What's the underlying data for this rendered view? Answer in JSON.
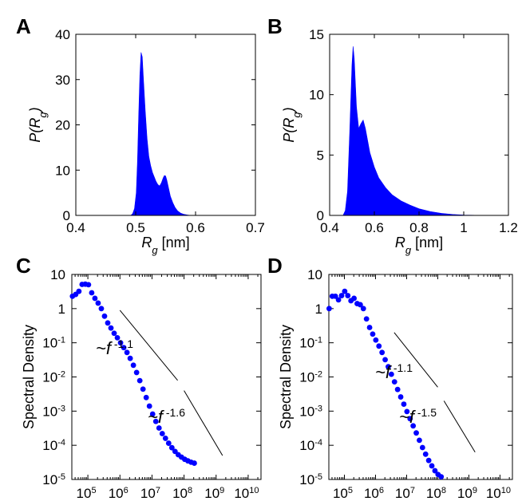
{
  "chart_data": [
    {
      "panel": "A",
      "type": "histogram",
      "xlabel_main": "R",
      "xlabel_sub": "g",
      "xlabel_unit": " [nm]",
      "ylabel_pre": "P(R",
      "ylabel_sub": "g",
      "ylabel_post": ")",
      "xlim": [
        0.4,
        0.7
      ],
      "ylim": [
        0,
        40
      ],
      "xticks": [
        "0.4",
        "0.5",
        "0.6",
        "0.7"
      ],
      "yticks": [
        "0",
        "10",
        "20",
        "30",
        "40"
      ],
      "color": "#0000ff",
      "curve": [
        [
          0.492,
          0
        ],
        [
          0.495,
          0.4
        ],
        [
          0.498,
          1.5
        ],
        [
          0.501,
          5
        ],
        [
          0.503,
          12
        ],
        [
          0.505,
          22
        ],
        [
          0.507,
          31
        ],
        [
          0.509,
          36
        ],
        [
          0.511,
          35
        ],
        [
          0.513,
          30
        ],
        [
          0.516,
          23
        ],
        [
          0.519,
          17
        ],
        [
          0.522,
          13
        ],
        [
          0.525,
          11
        ],
        [
          0.528,
          9.5
        ],
        [
          0.531,
          8.5
        ],
        [
          0.534,
          7.5
        ],
        [
          0.537,
          6.8
        ],
        [
          0.54,
          6.5
        ],
        [
          0.543,
          7.2
        ],
        [
          0.546,
          8.3
        ],
        [
          0.548,
          8.8
        ],
        [
          0.55,
          8.7
        ],
        [
          0.552,
          7.8
        ],
        [
          0.555,
          6
        ],
        [
          0.558,
          4.2
        ],
        [
          0.562,
          2.8
        ],
        [
          0.566,
          1.7
        ],
        [
          0.57,
          1.0
        ],
        [
          0.575,
          0.5
        ],
        [
          0.58,
          0.25
        ],
        [
          0.586,
          0.1
        ],
        [
          0.592,
          0
        ]
      ]
    },
    {
      "panel": "B",
      "type": "histogram",
      "xlabel_main": "R",
      "xlabel_sub": "g",
      "xlabel_unit": " [nm]",
      "ylabel_pre": "P(R",
      "ylabel_sub": "g",
      "ylabel_post": ")",
      "xlim": [
        0.4,
        1.2
      ],
      "ylim": [
        0,
        15
      ],
      "xticks": [
        "0.4",
        "0.6",
        "0.8",
        "1",
        "1.2"
      ],
      "yticks": [
        "0",
        "5",
        "10",
        "15"
      ],
      "color": "#0000ff",
      "curve": [
        [
          0.46,
          0
        ],
        [
          0.47,
          0.4
        ],
        [
          0.48,
          2
        ],
        [
          0.49,
          7
        ],
        [
          0.5,
          12.5
        ],
        [
          0.505,
          14
        ],
        [
          0.51,
          13
        ],
        [
          0.52,
          9
        ],
        [
          0.53,
          7.2
        ],
        [
          0.54,
          7.6
        ],
        [
          0.55,
          7.9
        ],
        [
          0.56,
          7.2
        ],
        [
          0.57,
          6.2
        ],
        [
          0.58,
          5.2
        ],
        [
          0.6,
          4.0
        ],
        [
          0.62,
          3.1
        ],
        [
          0.65,
          2.3
        ],
        [
          0.68,
          1.7
        ],
        [
          0.72,
          1.2
        ],
        [
          0.76,
          0.85
        ],
        [
          0.8,
          0.55
        ],
        [
          0.85,
          0.32
        ],
        [
          0.9,
          0.17
        ],
        [
          0.95,
          0.08
        ],
        [
          1.0,
          0.03
        ],
        [
          1.05,
          0.01
        ],
        [
          1.1,
          0
        ]
      ]
    },
    {
      "panel": "C",
      "type": "scatter",
      "xscale": "log",
      "yscale": "log",
      "xlabel": "Frequency [Hz]",
      "ylabel": "Spectral Density",
      "xlim_exp": [
        4.5,
        10.4
      ],
      "ylim_exp": [
        -5,
        1
      ],
      "xtick_exps": [
        5,
        6,
        7,
        8,
        9,
        10
      ],
      "ytick_labels": [
        {
          "base": "10",
          "exp": ""
        },
        {
          "base": "1",
          "exp": ""
        },
        {
          "base": "10",
          "exp": "-1"
        },
        {
          "base": "10",
          "exp": "-2"
        },
        {
          "base": "10",
          "exp": "-3"
        },
        {
          "base": "10",
          "exp": "-4"
        },
        {
          "base": "10",
          "exp": "-5"
        }
      ],
      "color": "#0000ff",
      "points": [
        [
          4.54,
          2.3
        ],
        [
          4.74,
          2.6
        ],
        [
          4.94,
          3.2
        ],
        [
          5.14,
          5.1
        ],
        [
          5.34,
          5.2
        ],
        [
          5.54,
          5.0
        ],
        [
          5.74,
          2.9
        ],
        [
          5.94,
          2.0
        ],
        [
          6.14,
          1.45
        ],
        [
          6.34,
          1.0
        ],
        [
          6.54,
          0.6
        ],
        [
          6.74,
          0.38
        ],
        [
          6.94,
          0.27
        ],
        [
          7.14,
          0.19
        ],
        [
          7.34,
          0.14
        ],
        [
          7.54,
          0.1
        ],
        [
          7.74,
          0.072
        ],
        [
          7.94,
          0.052
        ],
        [
          8.14,
          0.035
        ],
        [
          8.34,
          0.022
        ],
        [
          8.54,
          0.0135
        ],
        [
          8.74,
          0.0078
        ],
        [
          8.94,
          0.0044
        ],
        [
          9.14,
          0.0025
        ],
        [
          9.34,
          0.0014
        ],
        [
          9.54,
          0.00082
        ],
        [
          9.74,
          0.0005
        ],
        [
          9.94,
          0.00032
        ],
        [
          10.14,
          0.00022
        ],
        [
          10.34,
          0.00016
        ],
        [
          10.54,
          0.000115
        ],
        [
          10.74,
          8.5e-05
        ],
        [
          10.94,
          6.6e-05
        ],
        [
          11.14,
          5.3e-05
        ],
        [
          11.34,
          4.5e-05
        ],
        [
          11.54,
          3.9e-05
        ],
        [
          11.74,
          3.5e-05
        ],
        [
          11.94,
          3.2e-05
        ],
        [
          12.14,
          3e-05
        ]
      ],
      "fit_lines": [
        {
          "label": "~f",
          "exp": "-1.1",
          "x_exp": [
            6.0,
            7.8
          ],
          "y_exp": [
            -0.05,
            -2.1
          ]
        },
        {
          "label": "~f",
          "exp": "-1.6",
          "x_exp": [
            8.0,
            9.2
          ],
          "y_exp": [
            -2.4,
            -4.3
          ]
        }
      ]
    },
    {
      "panel": "D",
      "type": "scatter",
      "xscale": "log",
      "yscale": "log",
      "xlabel": "Frequency [Hz]",
      "ylabel": "Spectral Density",
      "xlim_exp": [
        4.5,
        10.4
      ],
      "ylim_exp": [
        -5,
        1
      ],
      "xtick_exps": [
        5,
        6,
        7,
        8,
        9,
        10
      ],
      "ytick_labels": [
        {
          "base": "10",
          "exp": ""
        },
        {
          "base": "1",
          "exp": ""
        },
        {
          "base": "10",
          "exp": "-1"
        },
        {
          "base": "10",
          "exp": "-2"
        },
        {
          "base": "10",
          "exp": "-3"
        },
        {
          "base": "10",
          "exp": "-4"
        },
        {
          "base": "10",
          "exp": "-5"
        }
      ],
      "color": "#0000ff",
      "points": [
        [
          4.52,
          1.0
        ],
        [
          4.72,
          2.3
        ],
        [
          4.92,
          2.3
        ],
        [
          5.12,
          1.8
        ],
        [
          5.32,
          2.4
        ],
        [
          5.52,
          3.2
        ],
        [
          5.72,
          2.4
        ],
        [
          5.92,
          1.7
        ],
        [
          6.12,
          2.0
        ],
        [
          6.32,
          1.4
        ],
        [
          6.52,
          1.3
        ],
        [
          6.72,
          1.0
        ],
        [
          6.92,
          0.5
        ],
        [
          7.12,
          0.28
        ],
        [
          7.32,
          0.18
        ],
        [
          7.52,
          0.12
        ],
        [
          7.72,
          0.08
        ],
        [
          7.92,
          0.052
        ],
        [
          8.12,
          0.032
        ],
        [
          8.32,
          0.02
        ],
        [
          8.52,
          0.012
        ],
        [
          8.72,
          0.0072
        ],
        [
          8.92,
          0.0043
        ],
        [
          9.12,
          0.0026
        ],
        [
          9.32,
          0.0016
        ],
        [
          9.52,
          0.00097
        ],
        [
          9.72,
          0.0006
        ],
        [
          9.92,
          0.00037
        ],
        [
          10.12,
          0.00023
        ],
        [
          10.32,
          0.00014
        ],
        [
          10.52,
          8.6e-05
        ],
        [
          10.72,
          5.5e-05
        ],
        [
          10.92,
          3.6e-05
        ],
        [
          11.12,
          2.5e-05
        ],
        [
          11.32,
          1.8e-05
        ],
        [
          11.52,
          1.4e-05
        ],
        [
          11.72,
          1.2e-05
        ]
      ],
      "fit_lines": [
        {
          "label": "~f",
          "exp": "-1.1",
          "x_exp": [
            6.6,
            8.0
          ],
          "y_exp": [
            -0.7,
            -2.3
          ]
        },
        {
          "label": "~f",
          "exp": "-1.5",
          "x_exp": [
            8.2,
            9.2
          ],
          "y_exp": [
            -2.7,
            -4.2
          ]
        }
      ]
    }
  ]
}
